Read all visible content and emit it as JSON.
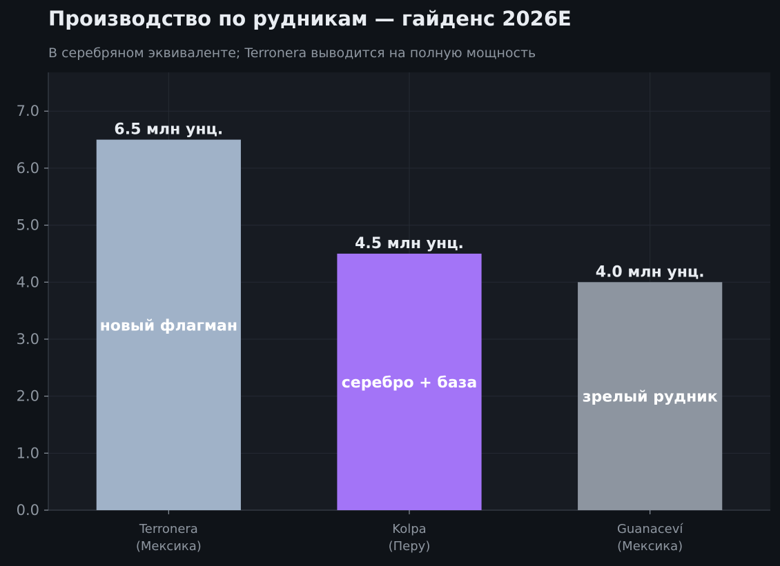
{
  "chart_data": {
    "type": "bar",
    "title": "Производство по рудникам — гайденс 2026E",
    "subtitle": "В серебряном эквиваленте; Terronera выводится на полную мощность",
    "categories": [
      [
        "Terronera",
        "(Мексика)"
      ],
      [
        "Kolpa",
        "(Перу)"
      ],
      [
        "Guanaceví",
        "(Мексика)"
      ]
    ],
    "values": [
      6.5,
      4.5,
      4.0
    ],
    "value_labels": [
      "6.5 млн унц.",
      "4.5 млн унц.",
      "4.0 млн унц."
    ],
    "bar_labels": [
      "новый флагман",
      "серебро + база",
      "зрелый рудник"
    ],
    "colors": [
      "#a0b2c8",
      "#a374f7",
      "#8d95a0"
    ],
    "ylim": [
      0,
      7.68
    ],
    "yticks": [
      "0.0",
      "1.0",
      "2.0",
      "3.0",
      "4.0",
      "5.0",
      "6.0",
      "7.0"
    ],
    "grid": true,
    "xlabel": "",
    "ylabel": ""
  }
}
